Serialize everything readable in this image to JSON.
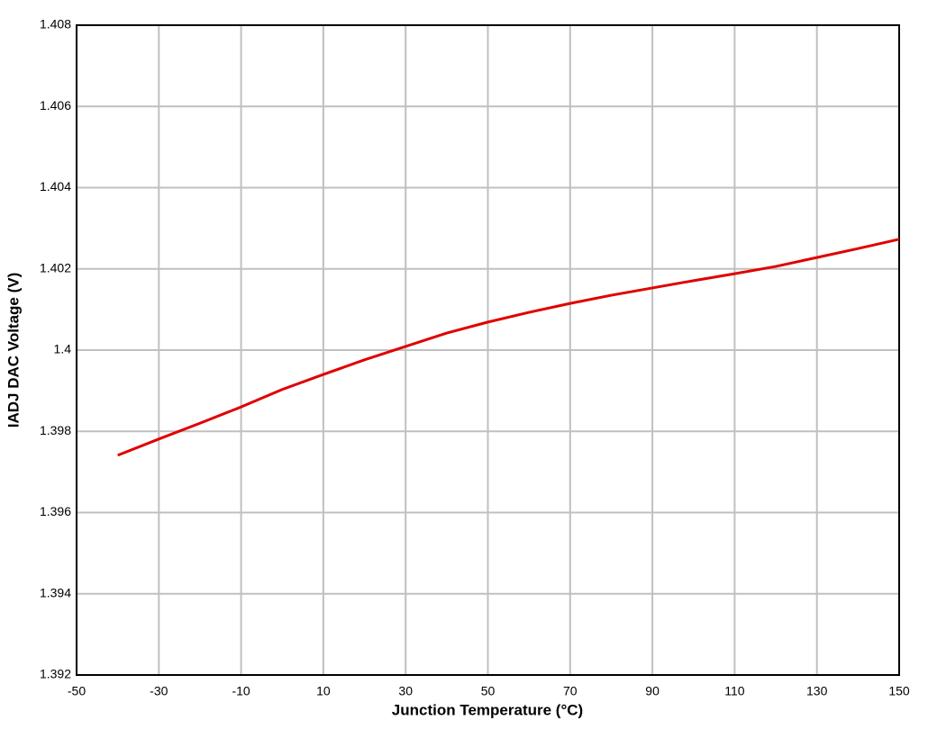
{
  "chart_data": {
    "type": "line",
    "x_label": "Junction Temperature (°C)",
    "y_label": "IADJ DAC Voltage (V)",
    "x": [
      -40,
      -30,
      -20,
      -10,
      0,
      10,
      20,
      30,
      40,
      50,
      60,
      70,
      80,
      90,
      100,
      110,
      120,
      130,
      140,
      150
    ],
    "series": [
      {
        "color": "#e00000",
        "values": [
          1.39741,
          1.39781,
          1.3982,
          1.3986,
          1.39903,
          1.3994,
          1.39976,
          1.40009,
          1.40042,
          1.40069,
          1.40093,
          1.40115,
          1.40135,
          1.40153,
          1.40171,
          1.40188,
          1.40206,
          1.40228,
          1.4025,
          1.40273
        ]
      }
    ],
    "xlim": [
      -50,
      150
    ],
    "xticks": [
      -50,
      -30,
      -10,
      10,
      30,
      50,
      70,
      90,
      110,
      130,
      150
    ],
    "ylim": [
      1.392,
      1.408
    ],
    "yticks": [
      1.392,
      1.394,
      1.396,
      1.398,
      1.4,
      1.402,
      1.404,
      1.406,
      1.408
    ],
    "grid": true
  }
}
